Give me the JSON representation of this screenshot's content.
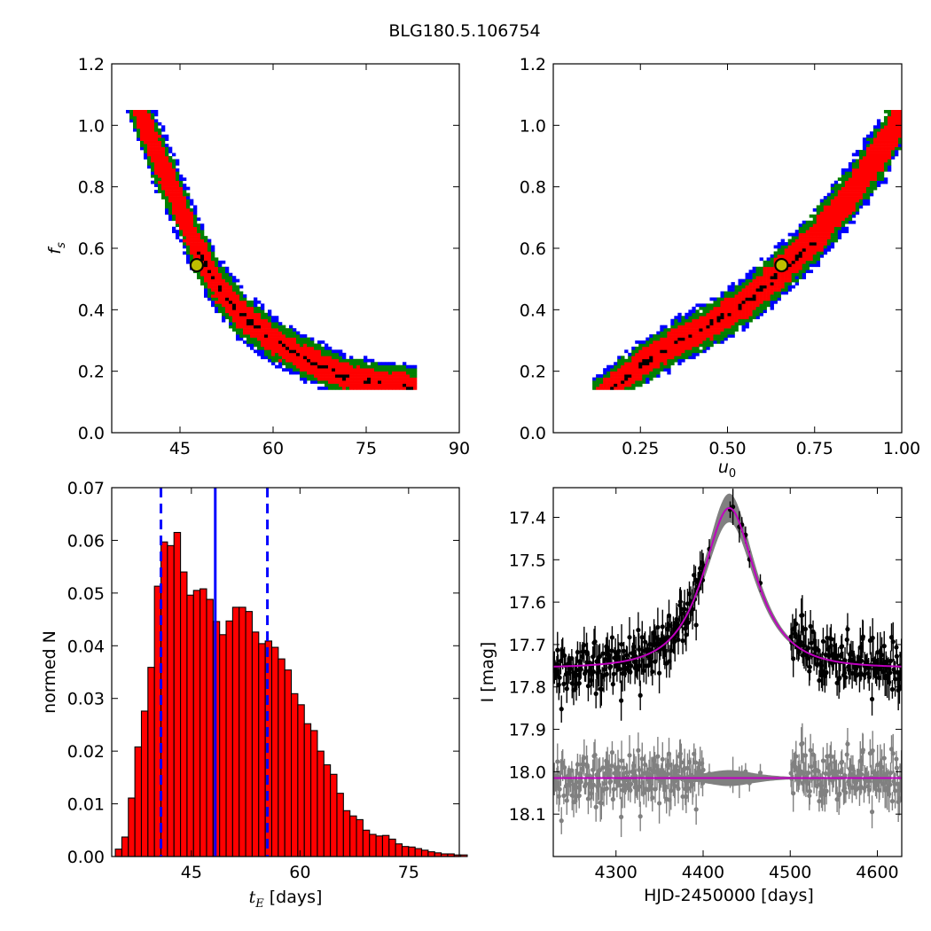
{
  "figure": {
    "title": "BLG180.5.106754"
  },
  "chart_data": [
    {
      "id": "fs_vs_tE",
      "type": "heatmap",
      "title": "",
      "xlabel": "",
      "ylabel": "f_s",
      "xlim": [
        34,
        90
      ],
      "ylim": [
        0.0,
        1.2
      ],
      "xticks": [
        45,
        60,
        75,
        90
      ],
      "yticks": [
        0.0,
        0.2,
        0.4,
        0.6,
        0.8,
        1.0,
        1.2
      ],
      "levels": [
        "blue",
        "green",
        "red",
        "black"
      ],
      "colors": {
        "blue": "#0000ff",
        "green": "#007f00",
        "red": "#ff0000",
        "black": "#000000",
        "marker_fill": "#bfbf00"
      },
      "band": {
        "x": [
          38.8,
          41.0,
          44.0,
          47.5,
          51.0,
          55.0,
          60.0,
          66.0,
          72.0,
          82.0
        ],
        "y": [
          1.04,
          0.92,
          0.78,
          0.61,
          0.48,
          0.38,
          0.3,
          0.23,
          0.18,
          0.15
        ]
      },
      "best_fit": {
        "x": 47.7,
        "y": 0.545
      }
    },
    {
      "id": "fs_vs_u0",
      "type": "heatmap",
      "title": "",
      "xlabel": "u_0",
      "ylabel": "",
      "xlim": [
        0.0,
        1.0
      ],
      "ylim": [
        0.0,
        1.2
      ],
      "xticks": [
        0.25,
        0.5,
        0.75,
        1.0
      ],
      "yticks": [
        0.0,
        0.2,
        0.4,
        0.6,
        0.8,
        1.0,
        1.2
      ],
      "levels": [
        "blue",
        "green",
        "red",
        "black"
      ],
      "colors": {
        "blue": "#0000ff",
        "green": "#007f00",
        "red": "#ff0000",
        "black": "#000000",
        "marker_fill": "#bfbf00"
      },
      "band": {
        "x": [
          0.17,
          0.25,
          0.35,
          0.45,
          0.55,
          0.65,
          0.75,
          0.85,
          0.95,
          1.0
        ],
        "y": [
          0.15,
          0.22,
          0.29,
          0.35,
          0.42,
          0.52,
          0.63,
          0.77,
          0.93,
          1.04
        ]
      },
      "best_fit": {
        "x": 0.655,
        "y": 0.545
      }
    },
    {
      "id": "tE_histogram",
      "type": "bar",
      "title": "",
      "xlabel": "t_E [days]",
      "ylabel": "normed N",
      "xlim": [
        34,
        82
      ],
      "ylim": [
        0.0,
        0.07
      ],
      "xticks": [
        45,
        60,
        75
      ],
      "yticks": [
        0.0,
        0.01,
        0.02,
        0.03,
        0.04,
        0.05,
        0.06,
        0.07
      ],
      "bar_color": "#ff0000",
      "bin_start": 34.5,
      "bin_width": 0.9,
      "values": [
        0.0014,
        0.0037,
        0.0111,
        0.0208,
        0.0276,
        0.0359,
        0.0513,
        0.0597,
        0.059,
        0.0615,
        0.054,
        0.0496,
        0.0505,
        0.0508,
        0.0488,
        0.0446,
        0.0421,
        0.0447,
        0.0473,
        0.0473,
        0.0465,
        0.0426,
        0.0404,
        0.0409,
        0.0397,
        0.0375,
        0.0354,
        0.0309,
        0.0288,
        0.0252,
        0.0239,
        0.02,
        0.0174,
        0.0156,
        0.012,
        0.0087,
        0.0077,
        0.007,
        0.005,
        0.0042,
        0.0039,
        0.004,
        0.0033,
        0.0024,
        0.0019,
        0.0018,
        0.0015,
        0.0012,
        0.0009,
        0.0007,
        0.0005,
        0.0005,
        0.0003,
        0.0003
      ],
      "median": 48.3,
      "percentile_low": 40.8,
      "percentile_high": 55.5
    },
    {
      "id": "lightcurve",
      "type": "scatter",
      "title": "",
      "xlabel": "HJD-2450000 [days]",
      "ylabel": "I [mag]",
      "xlim": [
        4228,
        4628
      ],
      "ylim": [
        18.2,
        17.33
      ],
      "xticks": [
        4300,
        4400,
        4500,
        4600
      ],
      "yticks": [
        17.4,
        17.5,
        17.6,
        17.7,
        17.8,
        17.9,
        18.0,
        18.1
      ],
      "colors": {
        "data": "#000000",
        "residuals": "#808080",
        "model": "#bf00bf",
        "model_band": "#808080"
      },
      "model": {
        "t0": 4430.0,
        "tE": 47.7,
        "u0": 0.655,
        "fs": 0.545,
        "baseline": 17.755
      },
      "residual_offset": 18.015,
      "observation_gap": [
        4445,
        4500
      ]
    }
  ]
}
